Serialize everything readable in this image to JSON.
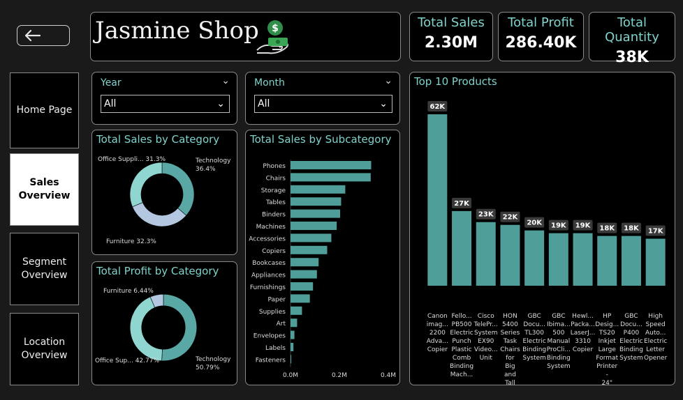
{
  "header": {
    "title": "Jasmine Shop",
    "back_icon": "arrow-left-icon",
    "logo_icon": "money-hand-icon"
  },
  "nav": {
    "items": [
      {
        "label": "Home Page",
        "active": false
      },
      {
        "label": "Sales Overview",
        "active": true
      },
      {
        "label": "Segment Overview",
        "active": false
      },
      {
        "label": "Location Overview",
        "active": false
      }
    ]
  },
  "kpis": [
    {
      "label": "Total Sales",
      "value": "2.30M"
    },
    {
      "label": "Total Profit",
      "value": "286.40K"
    },
    {
      "label": "Total Quantity",
      "value": "38K"
    }
  ],
  "filters": {
    "year": {
      "label": "Year",
      "value": "All"
    },
    "month": {
      "label": "Month",
      "value": "All"
    }
  },
  "colors": {
    "accent": "#7fd3cc",
    "bar": "#4f9e9a",
    "bg": "#000000"
  },
  "chart_data": [
    {
      "type": "pie",
      "title": "Total Sales by Category",
      "categories": [
        "Technology",
        "Furniture",
        "Office Suppli..."
      ],
      "values": [
        36.4,
        32.3,
        31.3
      ],
      "labels": [
        "Technology 36.4%",
        "Furniture 32.3%",
        "Office Suppli... 31.3%"
      ],
      "colors": [
        "#5aa8a6",
        "#b3c7e0",
        "#90d6d0"
      ]
    },
    {
      "type": "pie",
      "title": "Total Profit by Category",
      "categories": [
        "Technology",
        "Office Sup...",
        "Furniture"
      ],
      "values": [
        50.79,
        42.77,
        6.44
      ],
      "labels": [
        "Technology 50.79%",
        "Office Sup... 42.77%",
        "Furniture 6.44%"
      ],
      "colors": [
        "#5aa8a6",
        "#90d6d0",
        "#b3c7e0"
      ]
    },
    {
      "type": "bar",
      "orientation": "horizontal",
      "title": "Total Sales by Subcategory",
      "categories": [
        "Phones",
        "Chairs",
        "Storage",
        "Tables",
        "Binders",
        "Machines",
        "Accessories",
        "Copiers",
        "Bookcases",
        "Appliances",
        "Furnishings",
        "Paper",
        "Supplies",
        "Art",
        "Envelopes",
        "Labels",
        "Fasteners"
      ],
      "values": [
        0.33,
        0.328,
        0.224,
        0.207,
        0.203,
        0.189,
        0.167,
        0.15,
        0.115,
        0.108,
        0.092,
        0.079,
        0.047,
        0.027,
        0.016,
        0.012,
        0.003
      ],
      "xticks": [
        "0.0M",
        "0.2M",
        "0.4M"
      ],
      "xlim": [
        0,
        0.4
      ]
    },
    {
      "type": "bar",
      "title": "Top 10 Products",
      "categories": [
        "Canon imag... 2200 Adva... Copier",
        "Fello... PB500 Electric Punch Plastic Comb Binding Mach...",
        "Cisco TelePr... System EX90 Video... Unit",
        "HON 5400 Series Task Chairs for Big and Tall",
        "GBC Docu... TL300 Electric Binding System",
        "GBC Ibima... 500 Manual ProCli... Binding System",
        "Hewl... Packa... LaserJ... 3310 Copier",
        "HP Desig... TS20 Inkjet Large Format Printer - 24\" ...",
        "GBC Docu... P400 Electric Binding System",
        "High Speed Auto... Electric Letter Opener"
      ],
      "values": [
        62000,
        27000,
        23000,
        22000,
        20000,
        19000,
        19000,
        18000,
        18000,
        17000
      ],
      "data_labels": [
        "62K",
        "27K",
        "23K",
        "22K",
        "20K",
        "19K",
        "19K",
        "18K",
        "18K",
        "17K"
      ]
    }
  ]
}
